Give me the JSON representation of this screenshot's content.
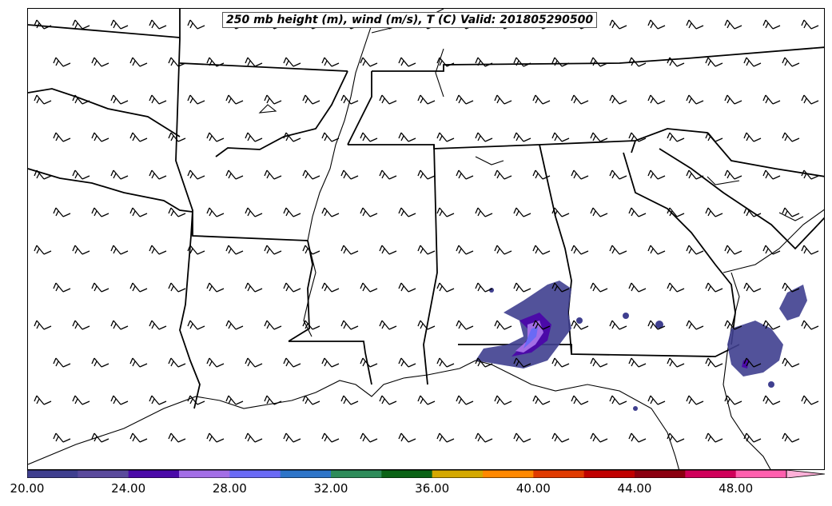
{
  "title": "250 mb height (m), wind (m/s), T (C) Valid: 201805290500",
  "colorbar": {
    "tick_labels": [
      "20.00",
      "24.00",
      "28.00",
      "32.00",
      "36.00",
      "40.00",
      "44.00",
      "48.00"
    ],
    "colors": [
      "#3f3f8f",
      "#5a4a9c",
      "#4b0aa8",
      "#a36ee6",
      "#6a6af5",
      "#2d74c8",
      "#2e8c5a",
      "#0b6316",
      "#d4a800",
      "#ff8800",
      "#e03a00",
      "#c00000",
      "#8b0010",
      "#d0005a",
      "#ff5fae",
      "#ffb0d8"
    ]
  },
  "map": {
    "region": "Southeastern United States",
    "wind_barbs": "uniform field, westerly-southwesterly flow",
    "contour_levels_shown": [
      "20.00",
      "24.00",
      "28.00"
    ]
  }
}
